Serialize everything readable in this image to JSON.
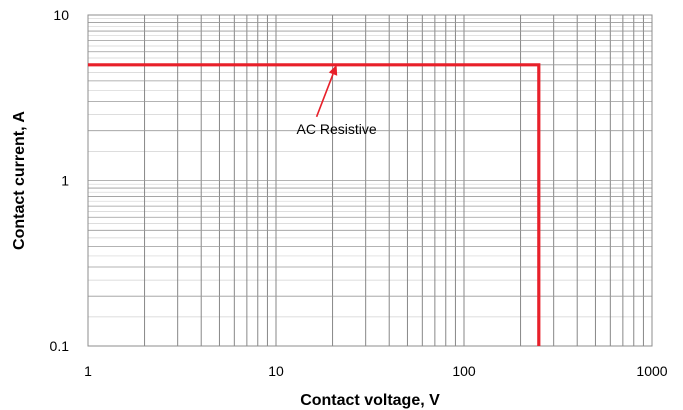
{
  "chart_data": {
    "type": "line",
    "title": "",
    "xlabel": "Contact voltage, V",
    "ylabel": "Contact current, A",
    "x_scale": "log",
    "y_scale": "log",
    "xlim": [
      1,
      1000
    ],
    "ylim": [
      0.1,
      10
    ],
    "grid": true,
    "x_ticks": [
      "1",
      "10",
      "100",
      "1000"
    ],
    "y_ticks": [
      "0.1",
      "1",
      "10"
    ],
    "series": [
      {
        "color": "#e8202a",
        "points": [
          [
            1,
            5
          ],
          [
            250,
            5
          ],
          [
            250,
            0.1
          ]
        ]
      }
    ],
    "annotations": [
      {
        "text": "AC Resistive",
        "target": [
          21,
          5
        ]
      }
    ]
  }
}
